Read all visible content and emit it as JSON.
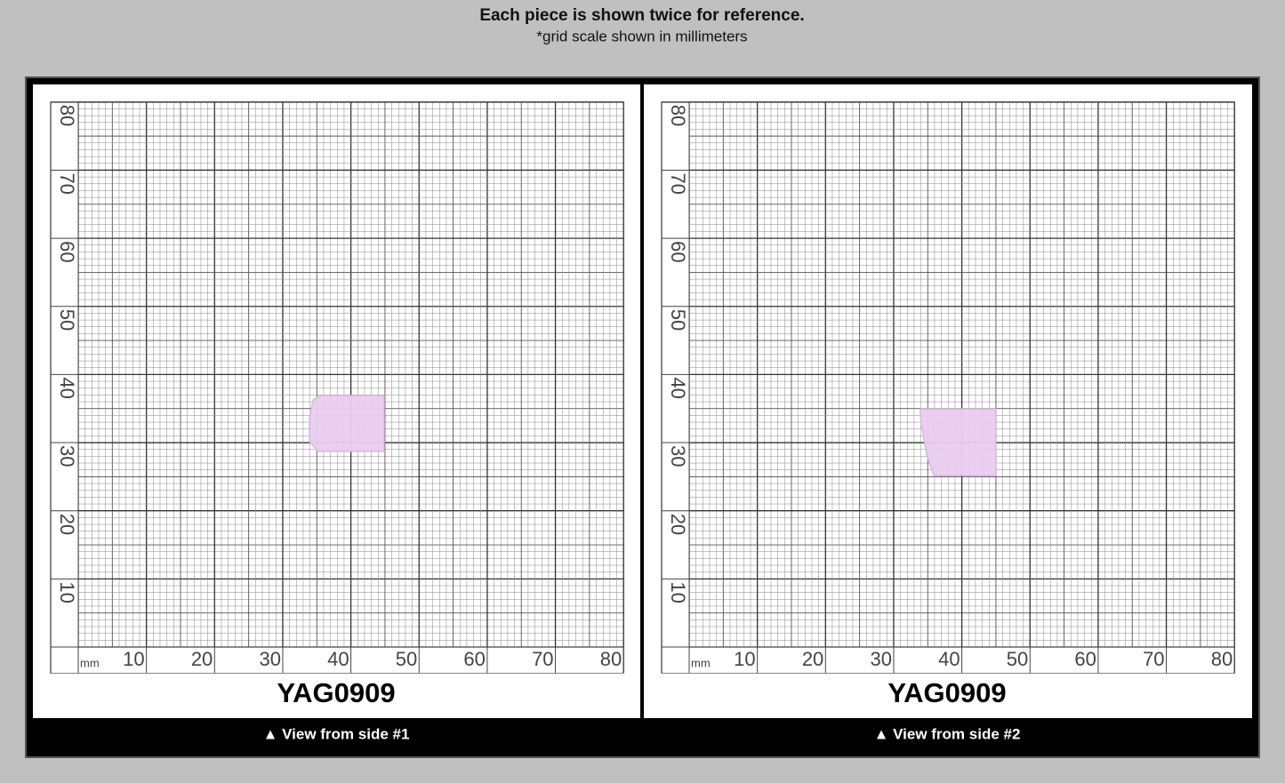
{
  "header": {
    "title": "Each piece is shown twice for reference.",
    "subtitle": "*grid scale shown in millimeters"
  },
  "panels": [
    {
      "x_ticks": [
        10,
        20,
        30,
        40,
        50,
        60,
        70,
        80
      ],
      "y_ticks": [
        10,
        20,
        30,
        40,
        50,
        60,
        70,
        80
      ],
      "unit": "mm",
      "code": "YAG0909",
      "caption": "▲ View from side #1"
    },
    {
      "x_ticks": [
        10,
        20,
        30,
        40,
        50,
        60,
        70,
        80
      ],
      "y_ticks": [
        10,
        20,
        30,
        40,
        50,
        60,
        70,
        80
      ],
      "unit": "mm",
      "code": "YAG0909",
      "caption": "▲ View from side #2"
    }
  ]
}
